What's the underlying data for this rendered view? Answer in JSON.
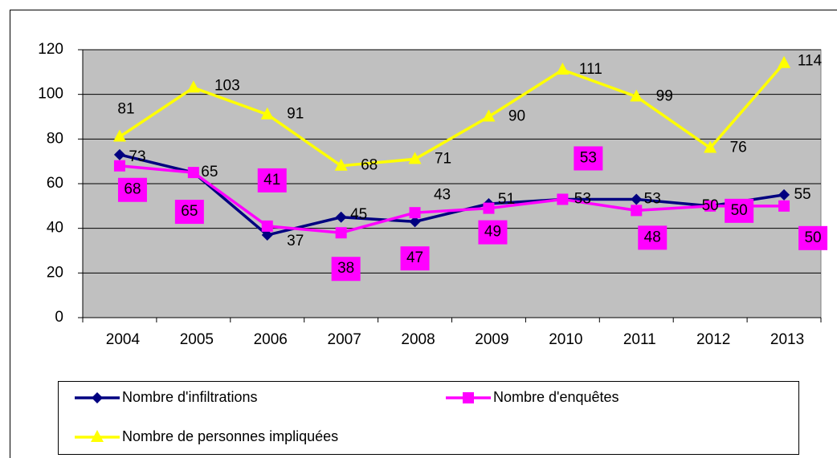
{
  "chart_data": {
    "type": "line",
    "categories": [
      "2004",
      "2005",
      "2006",
      "2007",
      "2008",
      "2009",
      "2010",
      "2011",
      "2012",
      "2013"
    ],
    "series": [
      {
        "name": "Nombre d'infiltrations",
        "color": "#000080",
        "marker": "diamond",
        "values": [
          73,
          65,
          37,
          45,
          43,
          51,
          53,
          53,
          50,
          55
        ]
      },
      {
        "name": "Nombre d'enquêtes",
        "color": "#ff00ff",
        "marker": "square",
        "values": [
          68,
          65,
          41,
          38,
          47,
          49,
          53,
          48,
          50,
          50
        ]
      },
      {
        "name": "Nombre de personnes impliquées",
        "color": "#ffff00",
        "marker": "triangle",
        "values": [
          81,
          103,
          91,
          68,
          71,
          90,
          111,
          99,
          76,
          114
        ]
      }
    ],
    "ylim": [
      0,
      120
    ],
    "yticks": [
      0,
      20,
      40,
      60,
      80,
      100,
      120
    ],
    "grid": true,
    "plot_background": "#c0c0c0",
    "legend": "bottom"
  }
}
